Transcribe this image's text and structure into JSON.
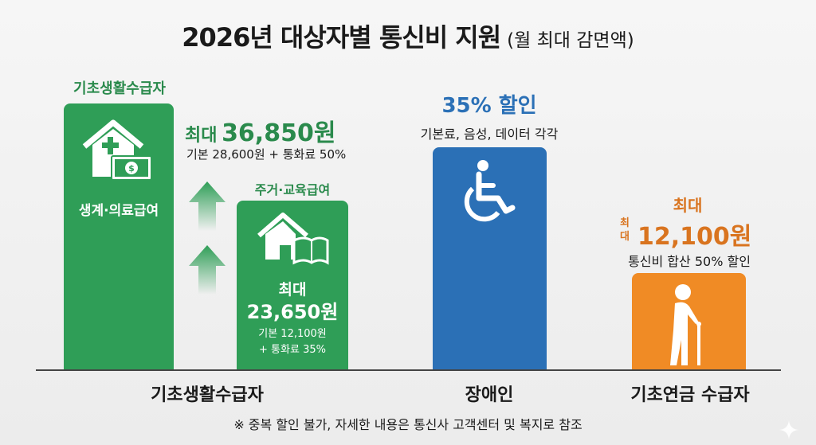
{
  "title": {
    "main": "2026년 대상자별 통신비 지원",
    "sub": "(월 최대 감면액)"
  },
  "groups": {
    "basic": {
      "top_label": "기초생활수급자",
      "bar1": {
        "label": "생계·의료급여",
        "amount_prefix": "최대",
        "amount": "36,850원",
        "detail": "기본 28,600원 + 통화료 50%"
      },
      "bar2": {
        "top_label": "주거·교육급여",
        "amount_prefix": "최대",
        "amount": "23,650원",
        "detail1": "기본 12,100원",
        "detail2": "+ 통화료 35%"
      },
      "axis_label": "기초생활수급자"
    },
    "disabled": {
      "headline": "35% 할인",
      "detail": "기본료, 음성, 데이터 각각",
      "axis_label": "장애인"
    },
    "pension": {
      "prefix_top": "최대",
      "prefix_side1": "최",
      "prefix_side2": "대",
      "amount": "12,100원",
      "detail": "통신비 합산 50% 할인",
      "axis_label": "기초연금 수급자"
    }
  },
  "footnote": "※ 중복 할인 불가, 자세한 내용은 통신사 고객센터 및 복지로 참조",
  "colors": {
    "green": "#2f9e57",
    "blue": "#2b70b6",
    "orange": "#f08b25",
    "orange_text": "#d9741f"
  },
  "chart_data": {
    "type": "bar",
    "title": "2026년 대상자별 통신비 지원 (월 최대 감면액)",
    "categories": [
      "생계·의료급여",
      "주거·교육급여",
      "장애인",
      "기초연금 수급자"
    ],
    "values": [
      36850,
      23650,
      null,
      12100
    ],
    "unit": "원",
    "annotations": [
      "기본 28,600원 + 통화료 50%",
      "기본 12,100원 + 통화료 35%",
      "35% 할인 (기본료, 음성, 데이터 각각)",
      "통신비 합산 50% 할인"
    ]
  }
}
